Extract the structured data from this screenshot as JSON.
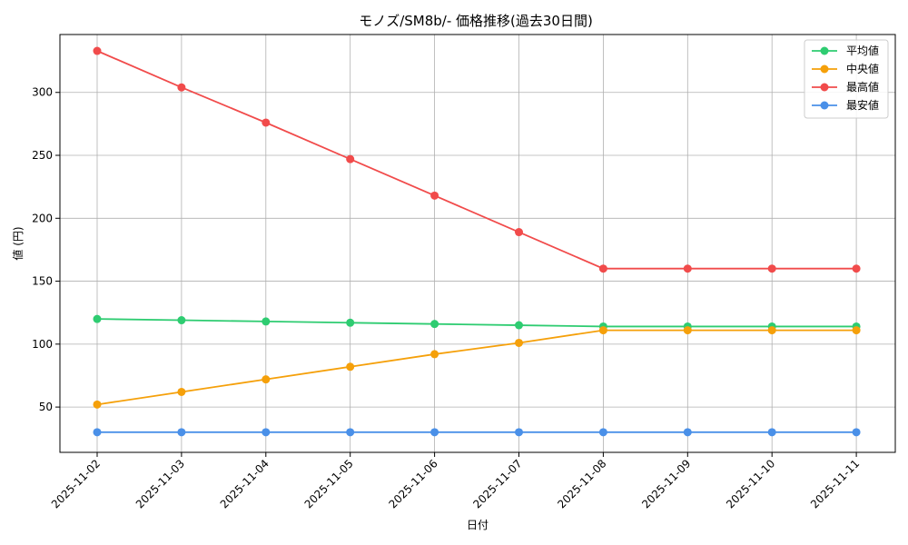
{
  "chart_data": {
    "type": "line",
    "title": "モノズ/SM8b/- 価格推移(過去30日間)",
    "xlabel": "日付",
    "ylabel": "値 (円)",
    "categories": [
      "2025-11-02",
      "2025-11-03",
      "2025-11-04",
      "2025-11-05",
      "2025-11-06",
      "2025-11-07",
      "2025-11-08",
      "2025-11-09",
      "2025-11-10",
      "2025-11-11"
    ],
    "ylim": [
      14,
      346
    ],
    "yticks": [
      50,
      100,
      150,
      200,
      250,
      300
    ],
    "grid": true,
    "legend_position": "top-right",
    "series": [
      {
        "name": "平均値",
        "color": "#2ecc71",
        "values": [
          120,
          119,
          118,
          117,
          116,
          115,
          114,
          114,
          114,
          114
        ]
      },
      {
        "name": "中央値",
        "color": "#f5a00a",
        "values": [
          52,
          62,
          72,
          82,
          92,
          101,
          111,
          111,
          111,
          111
        ]
      },
      {
        "name": "最高値",
        "color": "#f14b4b",
        "values": [
          333,
          304,
          276,
          247,
          218,
          189,
          160,
          160,
          160,
          160
        ]
      },
      {
        "name": "最安値",
        "color": "#4a90e8",
        "values": [
          30,
          30,
          30,
          30,
          30,
          30,
          30,
          30,
          30,
          30
        ]
      }
    ]
  }
}
